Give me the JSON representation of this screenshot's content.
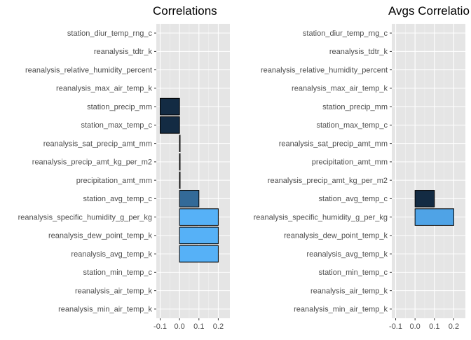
{
  "chart_data": [
    {
      "type": "bar",
      "orientation": "horizontal",
      "title": "Correlations",
      "xlabel": "",
      "ylabel": "",
      "xlim": [
        -0.12,
        0.26
      ],
      "x_ticks": [
        -0.1,
        0.0,
        0.1,
        0.2
      ],
      "x_tick_labels": [
        "-0.1",
        "0.0",
        "0.1",
        "0.2"
      ],
      "grid": true,
      "background": "#e5e5e5",
      "color_scale": {
        "low": "#132b43",
        "high": "#56b1f7"
      },
      "categories": [
        "station_diur_temp_rng_c",
        "reanalysis_tdtr_k",
        "reanalysis_relative_humidity_percent",
        "reanalysis_max_air_temp_k",
        "station_precip_mm",
        "station_max_temp_c",
        "reanalysis_sat_precip_amt_mm",
        "reanalysis_precip_amt_kg_per_m2",
        "precipitation_amt_mm",
        "station_avg_temp_c",
        "reanalysis_specific_humidity_g_per_kg",
        "reanalysis_dew_point_temp_k",
        "reanalysis_avg_temp_k",
        "station_min_temp_c",
        "reanalysis_air_temp_k",
        "reanalysis_min_air_temp_k"
      ],
      "values": [
        null,
        null,
        null,
        null,
        -0.1,
        -0.1,
        0.0,
        0.0,
        0.0,
        0.1,
        0.2,
        0.2,
        0.2,
        null,
        null,
        null
      ],
      "fills": [
        null,
        null,
        null,
        null,
        "#132b43",
        "#132b43",
        "#132b43",
        "#132b43",
        "#132b43",
        "#336a98",
        "#56b1f7",
        "#56b1f7",
        "#56b1f7",
        null,
        null,
        null
      ]
    },
    {
      "type": "bar",
      "orientation": "horizontal",
      "title": "Avgs Correlatio",
      "xlabel": "",
      "ylabel": "",
      "xlim": [
        -0.12,
        0.26
      ],
      "x_ticks": [
        -0.1,
        0.0,
        0.1,
        0.2
      ],
      "x_tick_labels": [
        "-0.1",
        "0.0",
        "0.1",
        "0.2"
      ],
      "grid": true,
      "background": "#e5e5e5",
      "color_scale": {
        "low": "#132b43",
        "high": "#56b1f7"
      },
      "categories": [
        "station_diur_temp_rng_c",
        "reanalysis_tdtr_k",
        "reanalysis_relative_humidity_percent",
        "reanalysis_max_air_temp_k",
        "station_precip_mm",
        "station_max_temp_c",
        "reanalysis_sat_precip_amt_mm",
        "precipitation_amt_mm",
        "reanalysis_precip_amt_kg_per_m2",
        "station_avg_temp_c",
        "reanalysis_specific_humidity_g_per_kg",
        "reanalysis_dew_point_temp_k",
        "reanalysis_avg_temp_k",
        "station_min_temp_c",
        "reanalysis_air_temp_k",
        "reanalysis_min_air_temp_k"
      ],
      "values": [
        null,
        null,
        null,
        null,
        null,
        null,
        null,
        null,
        null,
        0.1,
        0.2,
        null,
        null,
        null,
        null,
        null
      ],
      "fills": [
        null,
        null,
        null,
        null,
        null,
        null,
        null,
        null,
        null,
        "#132b43",
        "#4fa3e6",
        null,
        null,
        null,
        null,
        null
      ]
    }
  ]
}
